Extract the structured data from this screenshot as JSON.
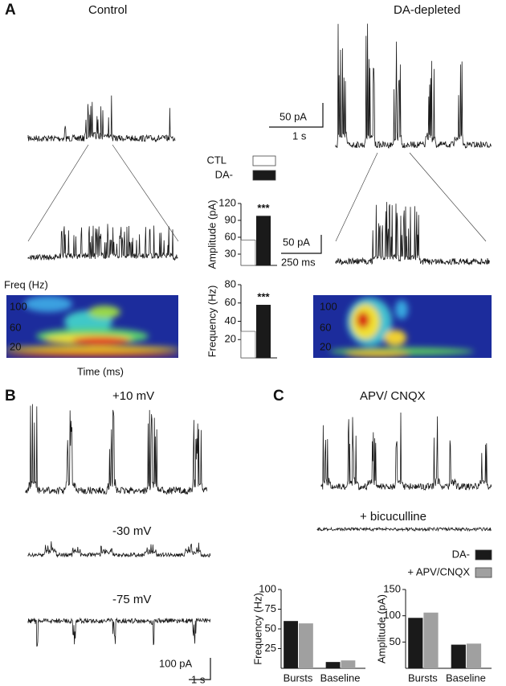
{
  "panels": {
    "A": {
      "label": "A",
      "control": "Control",
      "depleted": "DA-depleted",
      "scale1": {
        "y": "50 pA",
        "x": "1 s"
      },
      "scale2": {
        "y": "50 pA",
        "x": "250 ms"
      },
      "spec_ylabel": "Freq (Hz)",
      "spec_xlabel": "Time (ms)",
      "spec_left_ticks": [
        "100",
        "60",
        "20"
      ],
      "spec_right_ticks": [
        "100",
        "60",
        "20"
      ]
    },
    "B": {
      "label": "B",
      "v1": "+10 mV",
      "v2": "-30 mV",
      "v3": "-75 mV",
      "scale": {
        "y": "100 pA",
        "x": "1 s"
      }
    },
    "C": {
      "label": "C",
      "drug": "APV/ CNQX",
      "drug2": "+ bicuculline"
    }
  },
  "chart_data": [
    {
      "type": "bar",
      "ylabel": "Amplitude (pA)",
      "categories": [
        null
      ],
      "annotation": "***",
      "series": [
        {
          "name": "CTL",
          "color": "#ffffff",
          "values": [
            55
          ]
        },
        {
          "name": "DA-",
          "color": "#1a1a1a",
          "values": [
            98
          ]
        }
      ],
      "ylim": [
        10,
        120
      ],
      "yticks": [
        30,
        60,
        90,
        120
      ]
    },
    {
      "type": "bar",
      "ylabel": "Frequency (Hz)",
      "categories": [
        null
      ],
      "annotation": "***",
      "series": [
        {
          "color": "#ffffff",
          "values": [
            29
          ]
        },
        {
          "color": "#1a1a1a",
          "values": [
            58
          ]
        }
      ],
      "ylim": [
        0,
        80
      ],
      "yticks": [
        20,
        40,
        60,
        80
      ]
    },
    {
      "type": "bar",
      "ylabel": "Frequency (Hz)",
      "categories": [
        "Bursts",
        "Baseline"
      ],
      "series": [
        {
          "name": "DA-",
          "color": "#1a1a1a",
          "values": [
            60,
            8
          ]
        },
        {
          "name": "+ APV/CNQX",
          "color": "#a0a0a0",
          "values": [
            57,
            10
          ]
        }
      ],
      "ylim": [
        0,
        100
      ],
      "yticks": [
        25,
        50,
        75,
        100
      ]
    },
    {
      "type": "bar",
      "ylabel": "Amplitude (pA)",
      "categories": [
        "Bursts",
        "Baseline"
      ],
      "series": [
        {
          "color": "#1a1a1a",
          "values": [
            96,
            45
          ]
        },
        {
          "color": "#a0a0a0",
          "values": [
            106,
            47
          ]
        }
      ],
      "ylim": [
        0,
        150
      ],
      "yticks": [
        50,
        100,
        150
      ]
    }
  ]
}
